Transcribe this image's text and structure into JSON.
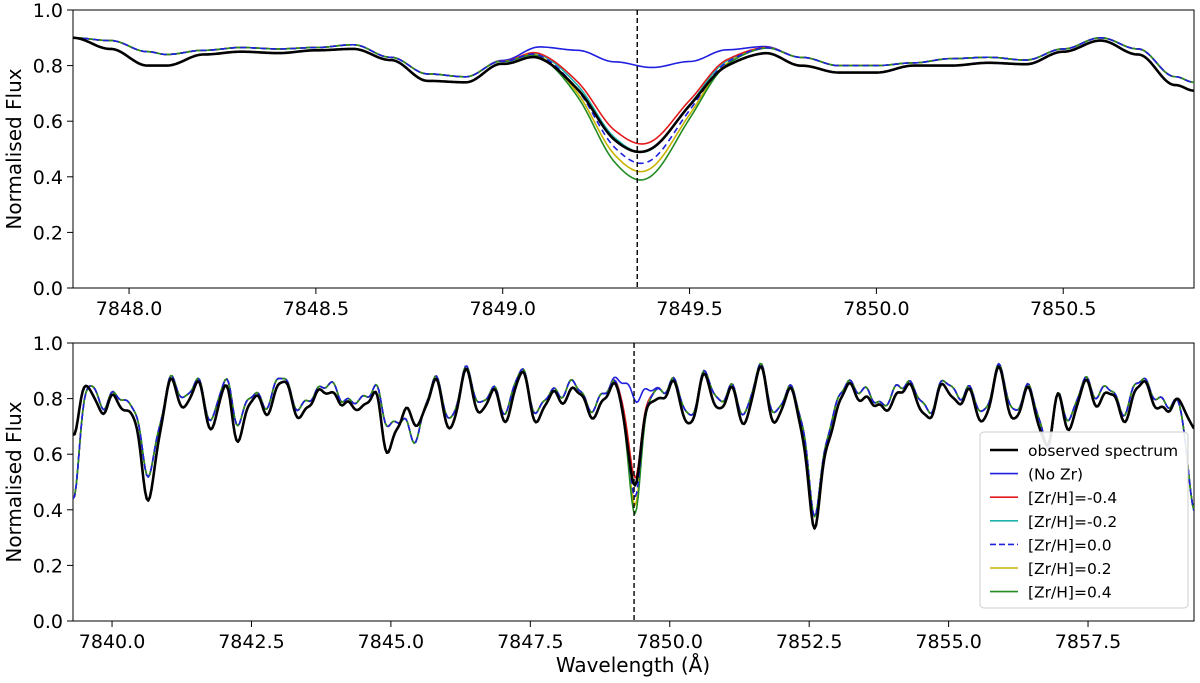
{
  "figure": {
    "xlabel": "Wavelength (Å)"
  },
  "legend": [
    {
      "label": "observed spectrum",
      "color": "#000000",
      "dash": false,
      "width": 2.6
    },
    {
      "label": "(No Zr)",
      "color": "#1f1fe0",
      "dash": false,
      "width": 1.6
    },
    {
      "label": "[Zr/H]=-0.4",
      "color": "#e41a1c",
      "dash": false,
      "width": 1.6
    },
    {
      "label": "[Zr/H]=-0.2",
      "color": "#20b2aa",
      "dash": false,
      "width": 1.6
    },
    {
      "label": "[Zr/H]=0.0",
      "color": "#1f1fe0",
      "dash": true,
      "width": 1.6
    },
    {
      "label": "[Zr/H]=0.2",
      "color": "#c8b400",
      "dash": false,
      "width": 1.6
    },
    {
      "label": "[Zr/H]=0.4",
      "color": "#228b22",
      "dash": false,
      "width": 1.6
    }
  ],
  "chart_data": [
    {
      "type": "line",
      "panel": "top",
      "ylabel": "Normalised Flux",
      "xlim": [
        7847.85,
        7850.85
      ],
      "ylim": [
        0.0,
        1.0
      ],
      "xticks": [
        "7848.0",
        "7848.5",
        "7849.0",
        "7849.5",
        "7850.0",
        "7850.5"
      ],
      "xtick_values": [
        7848.0,
        7848.5,
        7849.0,
        7849.5,
        7850.0,
        7850.5
      ],
      "yticks": [
        "0.0",
        "0.2",
        "0.4",
        "0.6",
        "0.8",
        "1.0"
      ],
      "ytick_values": [
        0.0,
        0.2,
        0.4,
        0.6,
        0.8,
        1.0
      ],
      "vline": 7849.36,
      "line_center": 7849.36,
      "line_sigma": 0.12,
      "line_minima": {
        "(No Zr)": 0.8,
        "[Zr/H]=-0.4": 0.52,
        "[Zr/H]=-0.2": 0.49,
        "[Zr/H]=0.0": 0.45,
        "[Zr/H]=0.2": 0.42,
        "[Zr/H]=0.4": 0.39,
        "observed spectrum": 0.49
      },
      "synthetic_continuum": {
        "x": [
          7847.85,
          7847.95,
          7848.05,
          7848.1,
          7848.2,
          7848.3,
          7848.4,
          7848.5,
          7848.6,
          7848.7,
          7848.8,
          7848.9,
          7849.0,
          7849.1,
          7849.2,
          7849.3,
          7849.4,
          7849.5,
          7849.6,
          7849.7,
          7849.8,
          7849.9,
          7850.0,
          7850.1,
          7850.2,
          7850.3,
          7850.4,
          7850.5,
          7850.6,
          7850.7,
          7850.8,
          7850.85
        ],
        "y": [
          0.9,
          0.89,
          0.85,
          0.84,
          0.855,
          0.865,
          0.86,
          0.865,
          0.875,
          0.83,
          0.77,
          0.76,
          0.82,
          0.87,
          0.86,
          0.82,
          0.8,
          0.82,
          0.86,
          0.87,
          0.83,
          0.8,
          0.8,
          0.81,
          0.825,
          0.83,
          0.82,
          0.86,
          0.9,
          0.86,
          0.76,
          0.74
        ]
      },
      "observed_continuum": {
        "x": [
          7847.85,
          7847.95,
          7848.05,
          7848.1,
          7848.2,
          7848.3,
          7848.4,
          7848.5,
          7848.6,
          7848.7,
          7848.8,
          7848.9,
          7849.0,
          7849.1,
          7849.2,
          7849.3,
          7849.4,
          7849.5,
          7849.6,
          7849.7,
          7849.8,
          7849.9,
          7850.0,
          7850.1,
          7850.2,
          7850.3,
          7850.4,
          7850.5,
          7850.6,
          7850.7,
          7850.8,
          7850.85
        ],
        "y": [
          0.9,
          0.86,
          0.8,
          0.8,
          0.84,
          0.85,
          0.845,
          0.855,
          0.86,
          0.82,
          0.745,
          0.74,
          0.81,
          0.855,
          0.84,
          0.8,
          0.79,
          0.81,
          0.84,
          0.85,
          0.8,
          0.775,
          0.775,
          0.8,
          0.8,
          0.81,
          0.805,
          0.85,
          0.89,
          0.84,
          0.73,
          0.71
        ]
      }
    },
    {
      "type": "line",
      "panel": "bottom",
      "ylabel": "Normalised Flux",
      "xlabel": "Wavelength (Å)",
      "xlim": [
        7839.3,
        7859.4
      ],
      "ylim": [
        0.0,
        1.0
      ],
      "xticks": [
        "7840.0",
        "7842.5",
        "7845.0",
        "7847.5",
        "7850.0",
        "7852.5",
        "7855.0",
        "7857.5"
      ],
      "xtick_values": [
        7840.0,
        7842.5,
        7845.0,
        7847.5,
        7850.0,
        7852.5,
        7855.0,
        7857.5
      ],
      "yticks": [
        "0.0",
        "0.2",
        "0.4",
        "0.6",
        "0.8",
        "1.0"
      ],
      "ytick_values": [
        0.0,
        0.2,
        0.4,
        0.6,
        0.8,
        1.0
      ],
      "vline": 7849.36,
      "line_center": 7849.36,
      "line_sigma": 0.12,
      "absorption_lines": [
        {
          "x": 7840.6,
          "depth_obs": 0.48,
          "depth_syn": 0.55,
          "sigma": 0.12
        },
        {
          "x": 7845.4,
          "depth_obs": 0.75,
          "depth_syn": 0.66,
          "sigma": 0.12
        },
        {
          "x": 7844.9,
          "depth_obs": 0.67,
          "depth_syn": 0.74,
          "sigma": 0.1
        },
        {
          "x": 7852.6,
          "depth_obs": 0.35,
          "depth_syn": 0.38,
          "sigma": 0.12
        },
        {
          "x": 7856.8,
          "depth_obs": 0.67,
          "depth_syn": 0.64,
          "sigma": 0.1
        },
        {
          "x": 7842.2,
          "depth_obs": 0.7,
          "depth_syn": 0.74,
          "sigma": 0.1
        },
        {
          "x": 7839.3,
          "depth_obs": 0.68,
          "depth_syn": 0.44,
          "sigma": 0.12
        },
        {
          "x": 7859.4,
          "depth_obs": 0.75,
          "depth_syn": 0.43,
          "sigma": 0.12
        }
      ]
    }
  ]
}
